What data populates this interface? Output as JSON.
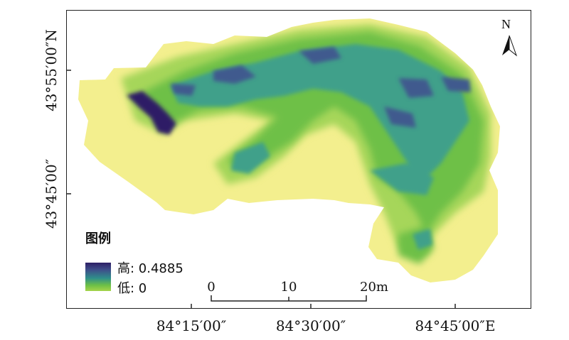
{
  "axes": {
    "x_ticks": [
      "84°15′00″",
      "84°30′00″",
      "84°45′00″E"
    ],
    "y_ticks": [
      "43°55′00″N",
      "43°45′00″"
    ]
  },
  "north_arrow": {
    "label": "N",
    "icon": "north-arrow-icon"
  },
  "legend": {
    "title": "图例",
    "high_label": "高: 0.4885",
    "low_label": "低: 0",
    "colors": {
      "high": "#2e1f66",
      "mid": "#2f8f8a",
      "green": "#6ec046",
      "low": "#f3ef8e"
    }
  },
  "scale_bar": {
    "labels": [
      "0",
      "10",
      "20m"
    ]
  },
  "colors": {
    "background_yellow": "#f3ef8e",
    "light_green": "#a6d65a",
    "green": "#6ec046",
    "teal": "#3fa08a",
    "blue": "#3f5a8e",
    "dark_purple": "#2e1f66"
  }
}
